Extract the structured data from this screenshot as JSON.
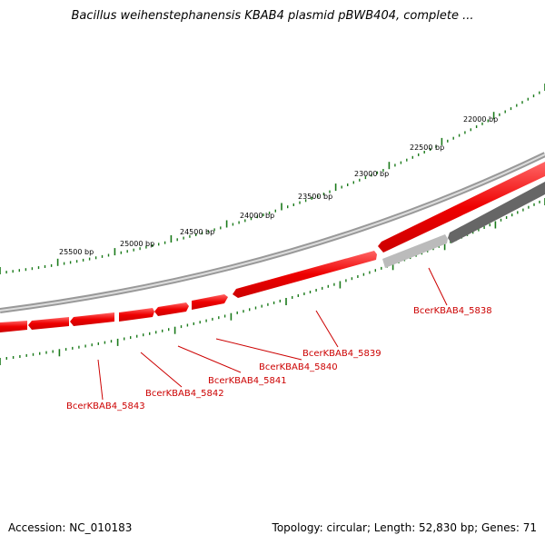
{
  "title": "Bacillus weihenstephanensis KBAB4 plasmid pBWB404, complete ...",
  "footer": {
    "accession": "Accession: NC_010183",
    "summary": "Topology: circular; Length: 52,830 bp; Genes: 71"
  },
  "colors": {
    "forward_gene": "#ee0000",
    "reverse_gene_dark": "#666666",
    "reverse_gene_light": "#bbbbbb",
    "backbone": "#888888",
    "tick": "#1a7a1a",
    "label": "#cc0000"
  },
  "tick_labels": [
    "22000 bp",
    "22500 bp",
    "23000 bp",
    "23500 bp",
    "24000 bp",
    "24500 bp",
    "25000 bp",
    "25500 bp"
  ],
  "gene_labels": [
    "BcerKBAB4_5838",
    "BcerKBAB4_5839",
    "BcerKBAB4_5840",
    "BcerKBAB4_5841",
    "BcerKBAB4_5842",
    "BcerKBAB4_5843"
  ]
}
